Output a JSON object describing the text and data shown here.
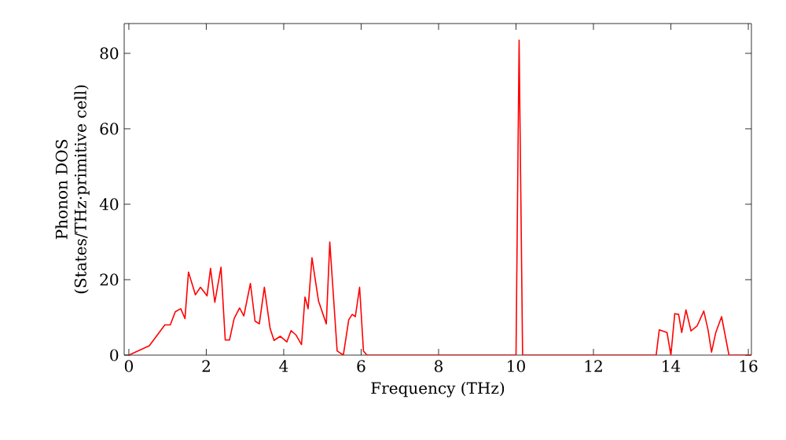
{
  "chart_data": {
    "type": "line",
    "xlabel": "Frequency (THz)",
    "ylabel": "Phonon DOS\n(States/THz·primitive cell)",
    "color": "#ff0000",
    "marker": "none",
    "line_style": "solid",
    "grid": false,
    "x": [
      0,
      0.53,
      0.93,
      1.07,
      1.2,
      1.34,
      1.45,
      1.54,
      1.72,
      1.85,
      2.02,
      2.11,
      2.22,
      2.38,
      2.49,
      2.6,
      2.72,
      2.86,
      2.97,
      3.14,
      3.26,
      3.37,
      3.5,
      3.65,
      3.75,
      3.91,
      4.08,
      4.19,
      4.32,
      4.46,
      4.55,
      4.63,
      4.73,
      4.9,
      5.1,
      5.19,
      5.38,
      5.54,
      5.68,
      5.77,
      5.85,
      5.96,
      6.06,
      6.15,
      10.0,
      10.08,
      10.17,
      13.62,
      13.7,
      13.9,
      14.0,
      14.1,
      14.2,
      14.28,
      14.39,
      14.52,
      14.68,
      14.85,
      14.96,
      15.05,
      15.16,
      15.31,
      15.5,
      16.08
    ],
    "values": [
      0,
      2.5,
      8,
      8,
      11.5,
      12.3,
      9.7,
      22,
      16,
      18,
      15.7,
      23,
      14,
      23.3,
      4,
      4,
      9.7,
      12.5,
      10.4,
      19,
      9,
      8.3,
      18,
      7,
      3.9,
      5,
      3.5,
      6.5,
      5.3,
      2.8,
      15.4,
      12.3,
      25.8,
      14.3,
      8.3,
      30,
      1.1,
      0,
      9.4,
      10.8,
      10.2,
      18,
      1.1,
      0,
      0,
      83.5,
      0,
      0,
      6.7,
      6,
      0,
      11,
      10.8,
      6,
      12,
      6.4,
      7.8,
      11.7,
      6.7,
      0.8,
      6,
      10.2,
      0,
      0
    ],
    "xlim": [
      -0.12,
      16.08
    ],
    "ylim": [
      0,
      87.9
    ],
    "xticks": [
      0,
      2,
      4,
      6,
      8,
      10,
      12,
      14,
      16
    ],
    "yticks": [
      0,
      20,
      40,
      60,
      80
    ]
  }
}
